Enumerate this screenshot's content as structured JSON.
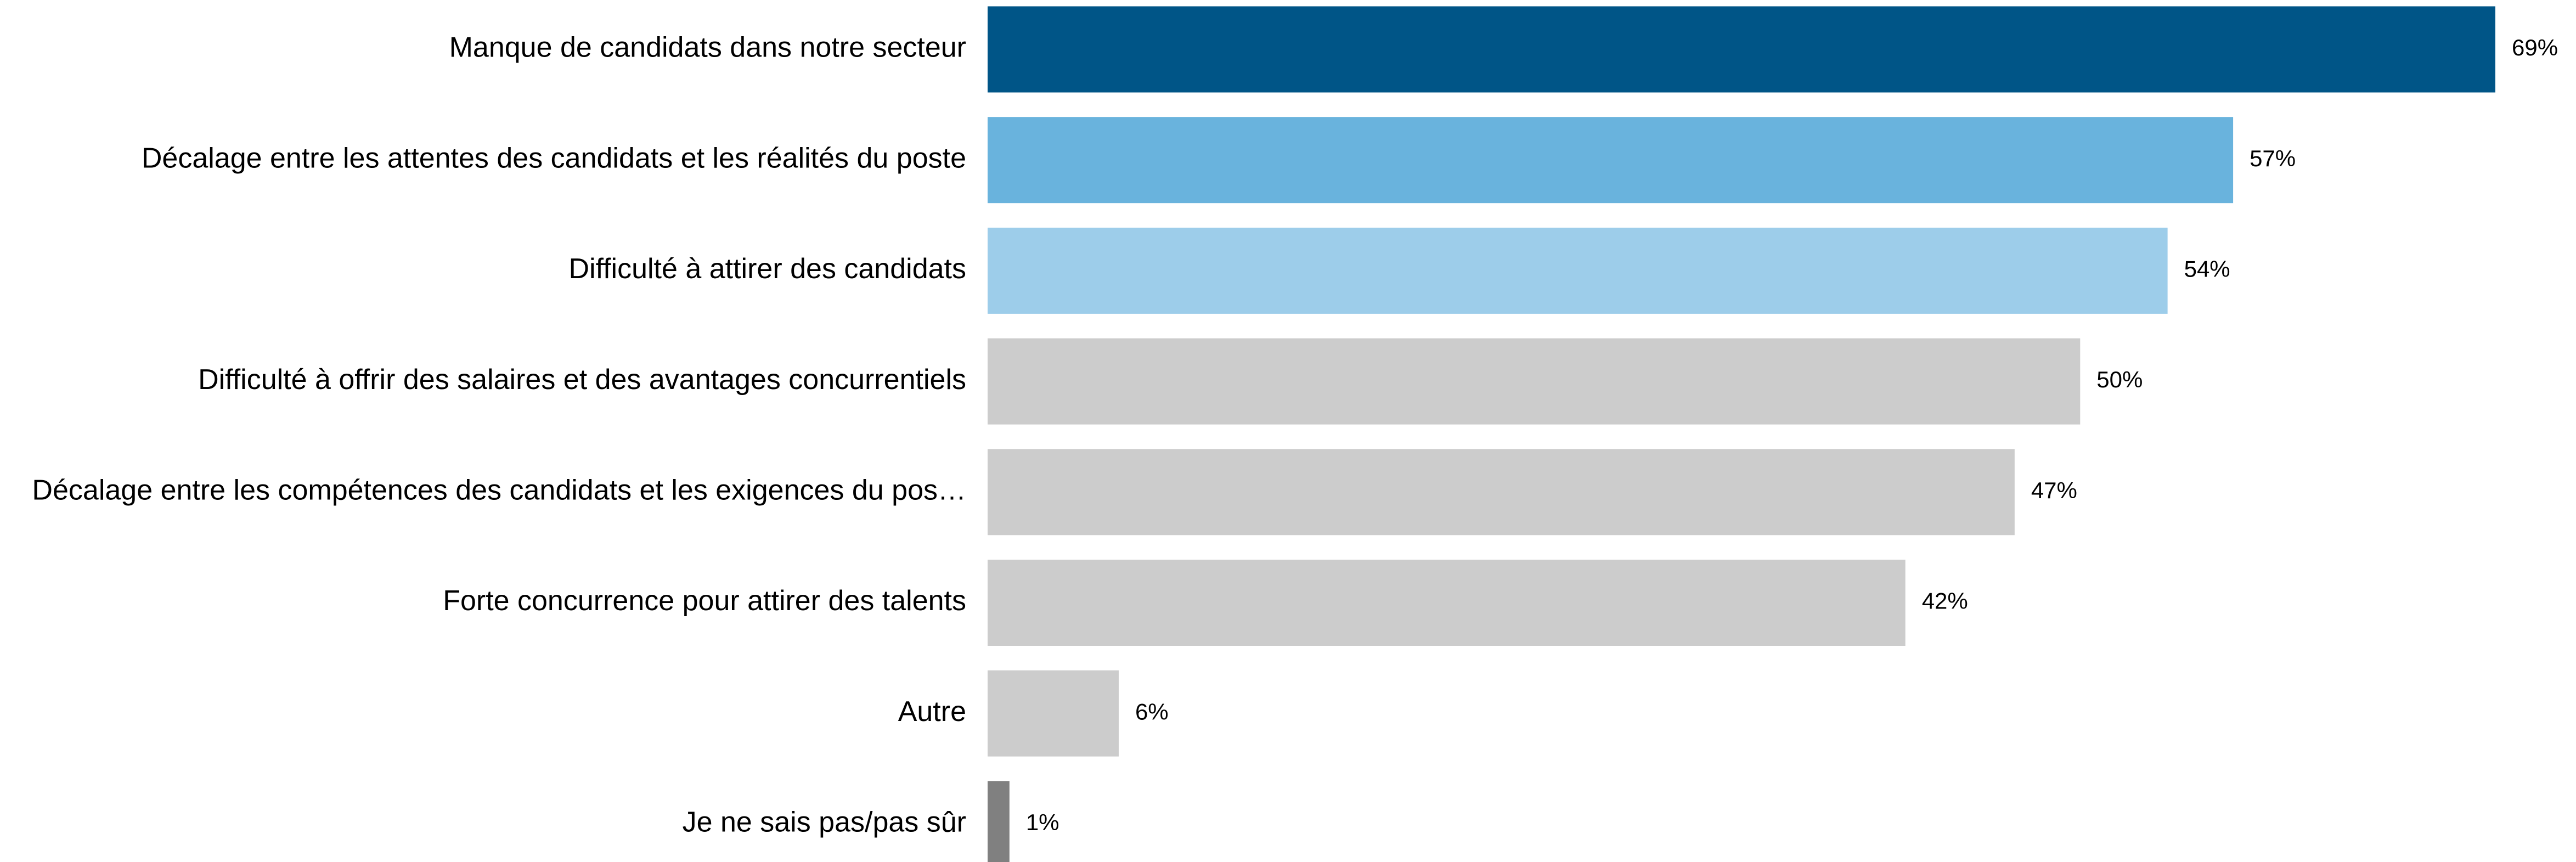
{
  "chart_data": {
    "type": "bar",
    "orientation": "horizontal",
    "categories": [
      "Manque de candidats dans notre secteur",
      "Décalage entre les attentes des candidats et les réalités du poste",
      "Difficulté à attirer des candidats",
      "Difficulté à offrir des salaires et des avantages concurrentiels",
      "Décalage entre les compétences des candidats et les exigences du pos…",
      "Forte concurrence pour attirer des talents",
      "Autre",
      "Je ne sais pas/pas sûr"
    ],
    "values": [
      69,
      57,
      54,
      50,
      47,
      42,
      6,
      1
    ],
    "value_labels": [
      "69%",
      "57%",
      "54%",
      "50%",
      "47%",
      "42%",
      "6%",
      "1%"
    ],
    "colors": [
      "#005587",
      "#69b3dd",
      "#9dcdea",
      "#cccccc",
      "#cccccc",
      "#cccccc",
      "#cccccc",
      "#808080"
    ]
  }
}
